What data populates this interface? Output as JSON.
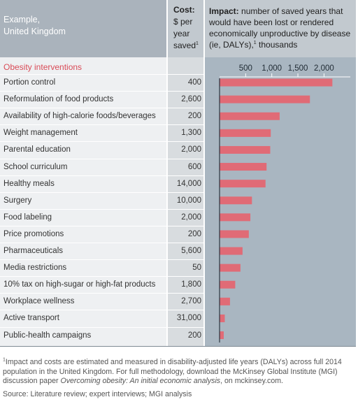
{
  "header": {
    "label_title_line1": "Example,",
    "label_title_line2": "United Kingdom",
    "cost_title": "Cost:",
    "cost_sub_line1": "$ per",
    "cost_sub_line2": "year",
    "cost_sub_line3": "saved",
    "cost_sup": "1",
    "impact_title": "Impact:",
    "impact_desc_part1": " number of saved years that would have been lost or rendered economically unproductive by disease (ie, DALYs),",
    "impact_sup": "1",
    "impact_desc_part2": " thousands"
  },
  "section_title": "Obesity interventions",
  "footnote": {
    "marker": "1",
    "text_before": "Impact and costs are estimated and measured in disability-adjusted life years (DALYs) across full 2014 population in the United Kingdom. For full methodology, download the McKinsey Global Institute (MGI) discussion paper ",
    "text_italic": "Overcoming obesity: An initial economic analysis",
    "text_after": ", on mckinsey.com."
  },
  "source": "Source: Literature review; expert interviews; MGI analysis",
  "colors": {
    "bar": "#e06b76",
    "chart_bg": "#a9b6c1",
    "section_title": "#d94b57"
  },
  "chart_data": {
    "type": "bar",
    "orientation": "horizontal",
    "title": "",
    "xlabel": "",
    "ylabel": "",
    "categories": [
      "Portion control",
      "Reformulation of food products",
      "Availability of high-calorie foods/beverages",
      "Weight management",
      "Parental education",
      "School curriculum",
      "Healthy meals",
      "Surgery",
      "Food labeling",
      "Price promotions",
      "Pharmaceuticals",
      "Media restrictions",
      "10% tax on high-sugar or high-fat products",
      "Workplace wellness",
      "Active transport",
      "Public-health campaigns"
    ],
    "cost": [
      "400",
      "2,600",
      "200",
      "1,300",
      "2,000",
      "600",
      "14,000",
      "10,000",
      "2,000",
      "200",
      "5,600",
      "50",
      "1,800",
      "2,700",
      "31,000",
      "200"
    ],
    "values": [
      2160,
      1730,
      1150,
      980,
      970,
      900,
      880,
      620,
      590,
      560,
      440,
      400,
      300,
      200,
      100,
      80
    ],
    "xlim": [
      0,
      2400
    ],
    "ticks": [
      500,
      1000,
      1500,
      2000
    ],
    "tick_labels": [
      "500",
      "1,000",
      "1,500",
      "2,000"
    ],
    "grid": false
  }
}
